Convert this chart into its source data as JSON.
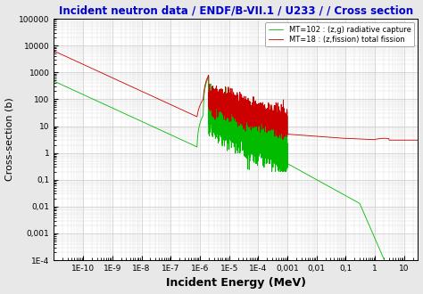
{
  "title": "Incident neutron data / ENDF/B-VII.1 / U233 / / Cross section",
  "xlabel": "Incident Energy (MeV)",
  "ylabel": "Cross-section (b)",
  "title_color": "#0000cc",
  "xlabel_fontsize": 9,
  "ylabel_fontsize": 8,
  "title_fontsize": 8.5,
  "legend_entries": [
    "MT=102 : (z,g) radiative capture",
    "MT=18 : (z,fission) total fission"
  ],
  "legend_colors": [
    "#00bb00",
    "#cc0000"
  ],
  "background_color": "#e8e8e8",
  "plot_bg_color": "#ffffff",
  "grid_color": "#c8c8c8",
  "x_ticks": [
    1e-10,
    1e-09,
    1e-08,
    1e-07,
    1e-06,
    1e-05,
    0.0001,
    0.001,
    0.01,
    0.1,
    1.0,
    10.0
  ],
  "x_labels": [
    "1E-10",
    "1E-9",
    "1E-8",
    "1E-7",
    "1E-6",
    "1E-5",
    "1E-4",
    "0,001",
    "0,01",
    "0,1",
    "1",
    "10"
  ],
  "y_ticks": [
    0.0001,
    0.001,
    0.01,
    0.1,
    1.0,
    10.0,
    100.0,
    1000.0,
    10000.0,
    100000.0
  ],
  "y_labels": [
    "1E-4",
    "0,001",
    "0,01",
    "0,1",
    "1",
    "10",
    "100",
    "1000",
    "10000",
    "100000"
  ]
}
